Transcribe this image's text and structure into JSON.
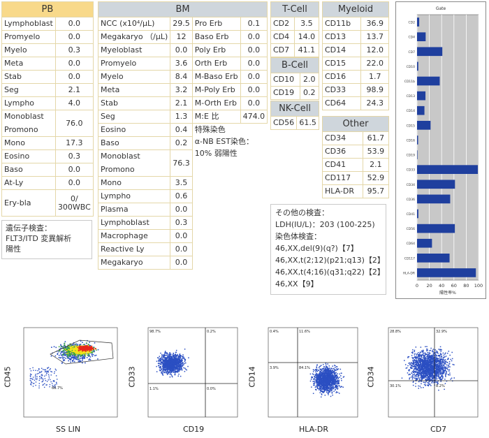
{
  "pb": {
    "title": "PB",
    "rows": [
      {
        "label": "Lymphoblast",
        "value": "0.0"
      },
      {
        "label": "Promyelo",
        "value": "0.0"
      },
      {
        "label": "Myelo",
        "value": "0.3"
      },
      {
        "label": "Meta",
        "value": "0.0"
      },
      {
        "label": "Stab",
        "value": "0.0"
      },
      {
        "label": "Seg",
        "value": "2.1"
      },
      {
        "label": "Lympho",
        "value": "4.0"
      }
    ],
    "mono_pro_label1": "Monoblast",
    "mono_pro_label2": "Promono",
    "mono_pro_value": "76.0",
    "rows2": [
      {
        "label": "Mono",
        "value": "17.3"
      },
      {
        "label": "Eosino",
        "value": "0.3"
      },
      {
        "label": "Baso",
        "value": "0.0"
      },
      {
        "label": "At-Ly",
        "value": "0.0"
      }
    ],
    "erybla_label": "Ery-bla",
    "erybla_value1": "0/",
    "erybla_value2": "300WBC"
  },
  "gene": {
    "line1": "遺伝子検査：",
    "line2": "FLT3/ITD 変異解析",
    "line3": "陽性"
  },
  "bm": {
    "title": "BM",
    "left": [
      {
        "label": "NCC (x10⁴/μL)",
        "value": "29.5"
      },
      {
        "label": "Megakaryo （/μL)",
        "value": "12"
      },
      {
        "label": "Myeloblast",
        "value": "0.0"
      },
      {
        "label": "Promyelo",
        "value": "3.6"
      },
      {
        "label": "Myelo",
        "value": "8.4"
      },
      {
        "label": "Meta",
        "value": "3.2"
      },
      {
        "label": "Stab",
        "value": "2.1"
      },
      {
        "label": "Seg",
        "value": "1.3"
      },
      {
        "label": "Eosino",
        "value": "0.4"
      },
      {
        "label": "Baso",
        "value": "0.2"
      }
    ],
    "mono_pro_label1": "Monoblast",
    "mono_pro_label2": "Promono",
    "mono_pro_value": "76.3",
    "left2": [
      {
        "label": "Mono",
        "value": "3.5"
      },
      {
        "label": "Lympho",
        "value": "0.6"
      },
      {
        "label": "Plasma",
        "value": "0.0"
      },
      {
        "label": "Lymphoblast",
        "value": "0.3"
      },
      {
        "label": "Macrophage",
        "value": "0.0"
      },
      {
        "label": "Reactive Ly",
        "value": "0.0"
      },
      {
        "label": "Megakaryo",
        "value": "0.0"
      }
    ],
    "right": [
      {
        "label": "Pro Erb",
        "value": "0.1"
      },
      {
        "label": "Baso Erb",
        "value": "0.0"
      },
      {
        "label": "Poly Erb",
        "value": "0.0"
      },
      {
        "label": "Orth Erb",
        "value": "0.0"
      },
      {
        "label": "M-Baso Erb",
        "value": "0.0"
      },
      {
        "label": "M-Poly Erb",
        "value": "0.0"
      },
      {
        "label": "M-Orth Erb",
        "value": "0.0"
      },
      {
        "label": "M:E 比",
        "value": "474.0"
      }
    ],
    "stain1": "特殊染色",
    "stain2": "α-NB EST染色：",
    "stain3": "10% 弱陽性"
  },
  "tcell": {
    "title": "T-Cell",
    "rows": [
      {
        "label": "CD2",
        "value": "3.5"
      },
      {
        "label": "CD4",
        "value": "14.0"
      },
      {
        "label": "CD7",
        "value": "41.1"
      }
    ]
  },
  "bcell": {
    "title": "B-Cell",
    "rows": [
      {
        "label": "CD10",
        "value": "2.0"
      },
      {
        "label": "CD19",
        "value": "0.2"
      }
    ]
  },
  "nkcell": {
    "title": "NK-Cell",
    "rows": [
      {
        "label": "CD56",
        "value": "61.5"
      }
    ]
  },
  "myeloid": {
    "title": "Myeloid",
    "rows": [
      {
        "label": "CD11b",
        "value": "36.9"
      },
      {
        "label": "CD13",
        "value": "13.7"
      },
      {
        "label": "CD14",
        "value": "12.0"
      },
      {
        "label": "CD15",
        "value": "22.0"
      },
      {
        "label": "CD16",
        "value": "1.7"
      },
      {
        "label": "CD33",
        "value": "98.9"
      },
      {
        "label": "CD64",
        "value": "24.3"
      }
    ]
  },
  "other": {
    "title": "Other",
    "rows": [
      {
        "label": "CD34",
        "value": "61.7"
      },
      {
        "label": "CD36",
        "value": "53.9"
      },
      {
        "label": "CD41",
        "value": "2.1"
      },
      {
        "label": "CD117",
        "value": "52.9"
      },
      {
        "label": "HLA-DR",
        "value": "95.7"
      }
    ]
  },
  "other_tests": {
    "line1": "その他の検査：",
    "line2": "LDH(IU/L)：203 (100-225)",
    "line3": "染色体検査：",
    "line4": "46,XX,del(9)(q?)【7】",
    "line5": "46,XX,t(2;12)(p21;q13)【2】",
    "line6": "46,XX,t(4;16)(q31;q22)【2】",
    "line7": "46,XX【9】"
  },
  "chart_data": {
    "type": "bar",
    "orientation": "horizontal",
    "title": "Gate",
    "xlabel": "陽性率%",
    "xlim": [
      0,
      100
    ],
    "xticks": [
      "0",
      "20",
      "40",
      "60",
      "80",
      "100"
    ],
    "grid": true,
    "bar_color": "#1f3f9e",
    "categories": [
      "CD2",
      "CD4",
      "CD7",
      "CD10",
      "CD11b",
      "CD13",
      "CD14",
      "CD15",
      "CD16",
      "CD19",
      "CD33",
      "CD34",
      "CD36",
      "CD41",
      "CD56",
      "CD64",
      "CD117",
      "HLA-DR"
    ],
    "values": [
      3.5,
      14.0,
      41.1,
      2.0,
      36.9,
      13.7,
      12.0,
      22.0,
      1.7,
      0.2,
      98.9,
      61.7,
      53.9,
      2.1,
      61.5,
      24.3,
      52.9,
      95.7
    ]
  },
  "flow": {
    "plot1": {
      "ylabel": "CD45",
      "xlabel": "SS LIN",
      "gate_pct": "66.7%"
    },
    "plot2": {
      "ylabel": "CD33",
      "xlabel": "CD19",
      "q1": "98.7%",
      "q2": "0.2%",
      "q3": "1.1%",
      "q4": "0.0%"
    },
    "plot3": {
      "ylabel": "CD14",
      "xlabel": "HLA-DR",
      "q1": "0.4%",
      "q2": "11.6%",
      "q3": "3.9%",
      "q4": "84.1%"
    },
    "plot4": {
      "ylabel": "CD34",
      "xlabel": "CD7",
      "q1": "28.8%",
      "q2": "32.9%",
      "q3": "30.1%",
      "q4": "8.2%"
    },
    "colors": {
      "dots": "#2b4fc2",
      "heat_hot": "#e8261c",
      "heat_mid": "#f5e21b",
      "heat_low": "#3aa63a"
    }
  }
}
